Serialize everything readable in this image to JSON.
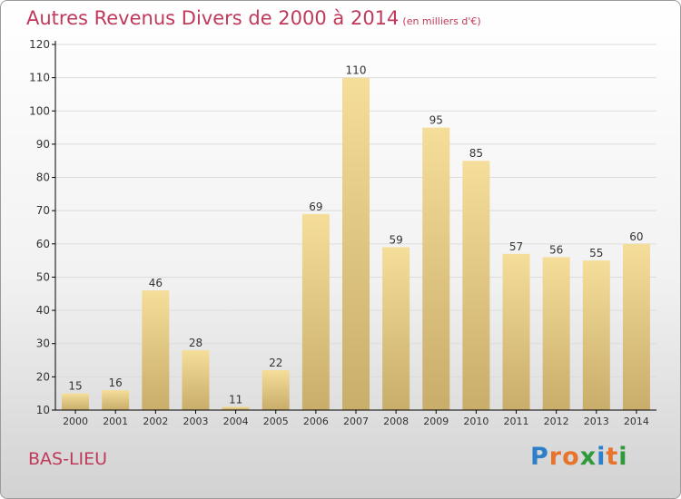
{
  "header": {
    "title": "Autres Revenus Divers de 2000 à 2014",
    "subtitle": "(en milliers d'€)"
  },
  "footer": {
    "place": "BAS-LIEU",
    "brand": "Proxiti"
  },
  "colors": {
    "title": "#c0395a",
    "bar_top": "#f5dd9a",
    "bar_bottom": "#c9ad6a",
    "axis": "#000000",
    "grid": "#dcdcdc"
  },
  "chart_data": {
    "type": "bar",
    "categories": [
      "2000",
      "2001",
      "2002",
      "2003",
      "2004",
      "2005",
      "2006",
      "2007",
      "2008",
      "2009",
      "2010",
      "2011",
      "2012",
      "2013",
      "2014"
    ],
    "values": [
      15,
      16,
      46,
      28,
      11,
      22,
      69,
      110,
      59,
      95,
      85,
      57,
      56,
      55,
      60
    ],
    "yticks": [
      10,
      20,
      30,
      40,
      50,
      60,
      70,
      80,
      90,
      100,
      110,
      120
    ],
    "ylim": [
      10,
      120
    ],
    "title": "Autres Revenus Divers de 2000 à 2014",
    "subtitle": "(en milliers d'€)",
    "xlabel": "",
    "ylabel": "",
    "grid": true,
    "legend": "none"
  }
}
